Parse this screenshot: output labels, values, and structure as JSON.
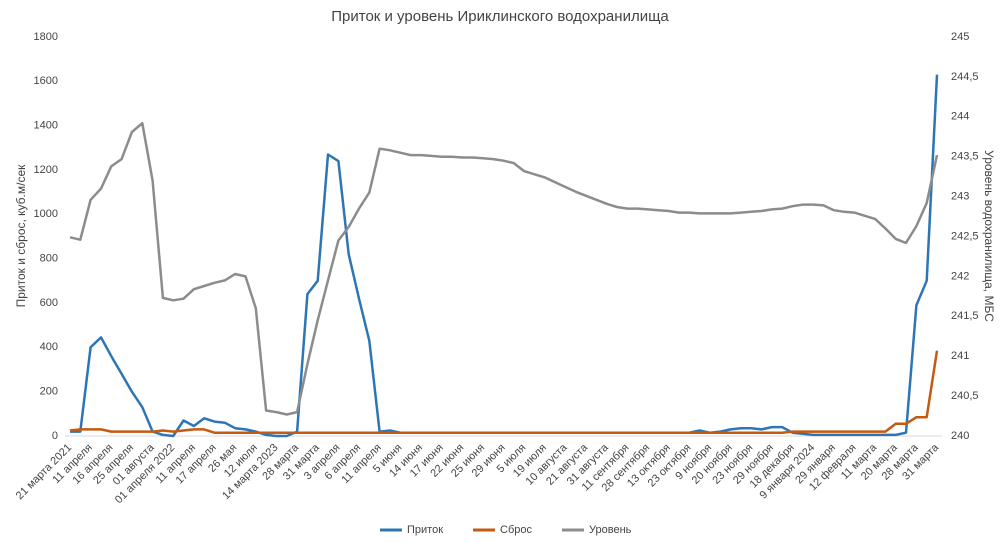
{
  "chart_data": {
    "type": "line",
    "title": "Приток и уровень Ириклинского водохранилища",
    "ylabel": "Приток и сброс, куб.м/сек",
    "y2label": "Уровень водохранилища, МБС",
    "categories": [
      "21 марта 2021",
      null,
      "11 апреля",
      null,
      "16 апреля",
      null,
      "25 апреля",
      null,
      "01 августа",
      null,
      "01 апреля 2022",
      null,
      "11 апреля",
      null,
      "17 апреля",
      null,
      "26 мая",
      null,
      "12 июля",
      null,
      "14 марта 2023",
      null,
      "28 марта",
      null,
      "31 марта",
      null,
      "3 апреля",
      null,
      "6 апреля",
      null,
      "11 апреля",
      null,
      "5 июня",
      null,
      "14 июня",
      null,
      "17 июня",
      null,
      "22 июня",
      null,
      "25 июня",
      null,
      "29 июня",
      null,
      "5 июля",
      null,
      "19 июля",
      null,
      "10 августа",
      null,
      "21 августа",
      null,
      "31 августа",
      null,
      "11 сентября",
      null,
      "28 сентября",
      null,
      "13 октября",
      null,
      "23 октября",
      null,
      "9 ноября",
      null,
      "20 ноября",
      null,
      "23 ноября",
      null,
      "29 ноября",
      null,
      "18 декабря",
      null,
      "9 января 2024",
      null,
      "29 января",
      null,
      "12 февраля",
      null,
      "11 марта",
      null,
      "20 марта",
      null,
      "28 марта",
      null,
      "31 марта"
    ],
    "series": [
      {
        "name": "Приток",
        "color": "#2e75b6",
        "values": [
          20,
          20,
          400,
          445,
          360,
          280,
          200,
          130,
          20,
          5,
          0,
          70,
          45,
          80,
          65,
          60,
          35,
          30,
          20,
          5,
          0,
          0,
          20,
          640,
          700,
          1270,
          1240,
          820,
          620,
          430,
          20,
          25,
          15,
          15,
          15,
          15,
          15,
          15,
          15,
          15,
          15,
          15,
          15,
          15,
          15,
          15,
          15,
          15,
          15,
          15,
          15,
          15,
          15,
          15,
          15,
          15,
          15,
          15,
          15,
          15,
          15,
          25,
          15,
          20,
          30,
          35,
          35,
          30,
          40,
          40,
          15,
          10,
          5,
          5,
          5,
          5,
          5,
          5,
          5,
          5,
          5,
          15,
          590,
          700,
          1630
        ]
      },
      {
        "name": "Сброс",
        "color": "#c55a11",
        "values": [
          25,
          30,
          30,
          30,
          20,
          20,
          20,
          20,
          20,
          25,
          20,
          25,
          30,
          30,
          15,
          15,
          15,
          15,
          15,
          15,
          15,
          15,
          15,
          15,
          15,
          15,
          15,
          15,
          15,
          15,
          15,
          15,
          15,
          15,
          15,
          15,
          15,
          15,
          15,
          15,
          15,
          15,
          15,
          15,
          15,
          15,
          15,
          15,
          15,
          15,
          15,
          15,
          15,
          15,
          15,
          15,
          15,
          15,
          15,
          15,
          15,
          15,
          15,
          15,
          15,
          15,
          15,
          15,
          15,
          15,
          20,
          20,
          20,
          20,
          20,
          20,
          20,
          20,
          20,
          20,
          55,
          55,
          85,
          85,
          385
        ]
      },
      {
        "name": "Уровень",
        "color": "#8c8c8c",
        "axis": "y2",
        "values": [
          242.49,
          242.46,
          242.96,
          243.1,
          243.38,
          243.47,
          243.81,
          243.92,
          243.2,
          241.73,
          241.7,
          241.72,
          241.84,
          241.88,
          241.92,
          241.95,
          242.03,
          242.0,
          241.6,
          240.32,
          240.3,
          240.27,
          240.3,
          240.9,
          241.45,
          241.95,
          242.45,
          242.62,
          242.85,
          243.05,
          243.6,
          243.58,
          243.55,
          243.52,
          243.52,
          243.51,
          243.5,
          243.5,
          243.49,
          243.49,
          243.48,
          243.47,
          243.45,
          243.42,
          243.32,
          243.28,
          243.24,
          243.18,
          243.12,
          243.06,
          243.01,
          242.96,
          242.91,
          242.87,
          242.85,
          242.85,
          242.84,
          242.83,
          242.82,
          242.8,
          242.8,
          242.79,
          242.79,
          242.79,
          242.79,
          242.8,
          242.81,
          242.82,
          242.84,
          242.85,
          242.88,
          242.9,
          242.9,
          242.89,
          242.83,
          242.81,
          242.8,
          242.76,
          242.72,
          242.6,
          242.47,
          242.42,
          242.63,
          242.92,
          243.52
        ]
      }
    ],
    "ylim": [
      0,
      1800
    ],
    "yticks": [
      0,
      200,
      400,
      600,
      800,
      1000,
      1200,
      1400,
      1600,
      1800
    ],
    "y2lim": [
      240,
      245
    ],
    "y2ticks": [
      240,
      {
        "value": 240.5,
        "label": "240,5"
      },
      241,
      {
        "value": 241.5,
        "label": "241,5"
      },
      242,
      {
        "value": 242.5,
        "label": "242,5"
      },
      243,
      {
        "value": 243.5,
        "label": "243,5"
      },
      244,
      {
        "value": 244.5,
        "label": "244,5"
      },
      245
    ],
    "grid": false,
    "legend": "bottom"
  }
}
